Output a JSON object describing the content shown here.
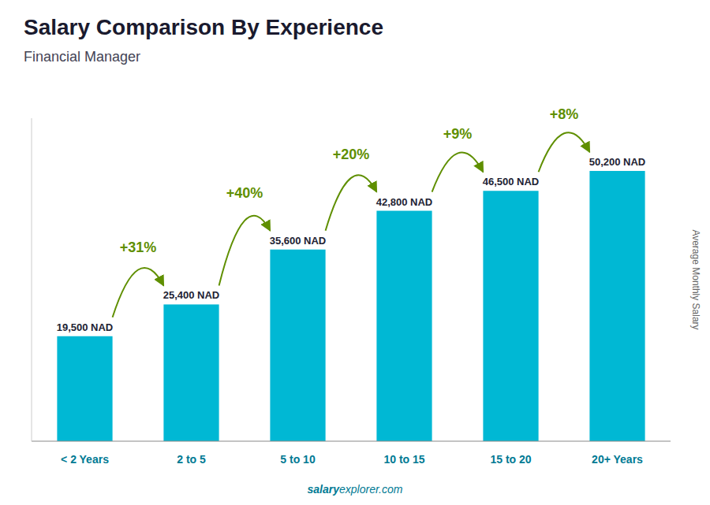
{
  "chart_data": {
    "type": "bar",
    "title": "Salary Comparison By Experience",
    "subtitle": "Financial Manager",
    "categories": [
      "< 2 Years",
      "2 to 5",
      "5 to 10",
      "10 to 15",
      "15 to 20",
      "20+ Years"
    ],
    "values": [
      19500,
      25400,
      35600,
      42800,
      46500,
      50200
    ],
    "value_labels": [
      "19,500 NAD",
      "25,400 NAD",
      "35,600 NAD",
      "42,800 NAD",
      "46,500 NAD",
      "50,200 NAD"
    ],
    "data_labels": true,
    "annotations": [
      "+31%",
      "+40%",
      "+20%",
      "+9%",
      "+8%"
    ],
    "color": "#00b8d4",
    "ylabel": "Average Monthly Salary",
    "ylim": [
      0,
      60000
    ],
    "tick_labels": "x",
    "grid": false,
    "watermark": [
      "salary",
      "explorer.com"
    ]
  }
}
